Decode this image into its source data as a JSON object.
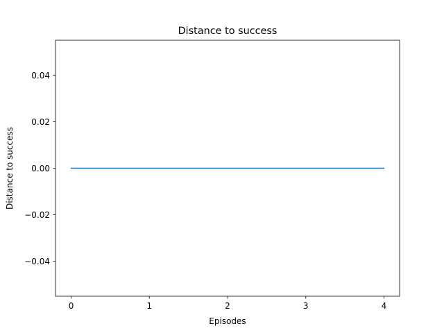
{
  "chart_data": {
    "type": "line",
    "title": "Distance to success",
    "xlabel": "Episodes",
    "ylabel": "Distance to success",
    "x": [
      0,
      1,
      2,
      3,
      4
    ],
    "series": [
      {
        "values": [
          0,
          0,
          0,
          0,
          0
        ],
        "color": "#1f77b4"
      }
    ],
    "xlim": [
      -0.2,
      4.2
    ],
    "ylim": [
      -0.055,
      0.055
    ],
    "xticks": [
      0,
      1,
      2,
      3,
      4
    ],
    "xtick_labels": [
      "0",
      "1",
      "2",
      "3",
      "4"
    ],
    "yticks": [
      -0.04,
      -0.02,
      0.0,
      0.02,
      0.04
    ],
    "ytick_labels": [
      "−0.04",
      "−0.02",
      "0.00",
      "0.02",
      "0.04"
    ],
    "grid": false,
    "legend": "none"
  }
}
